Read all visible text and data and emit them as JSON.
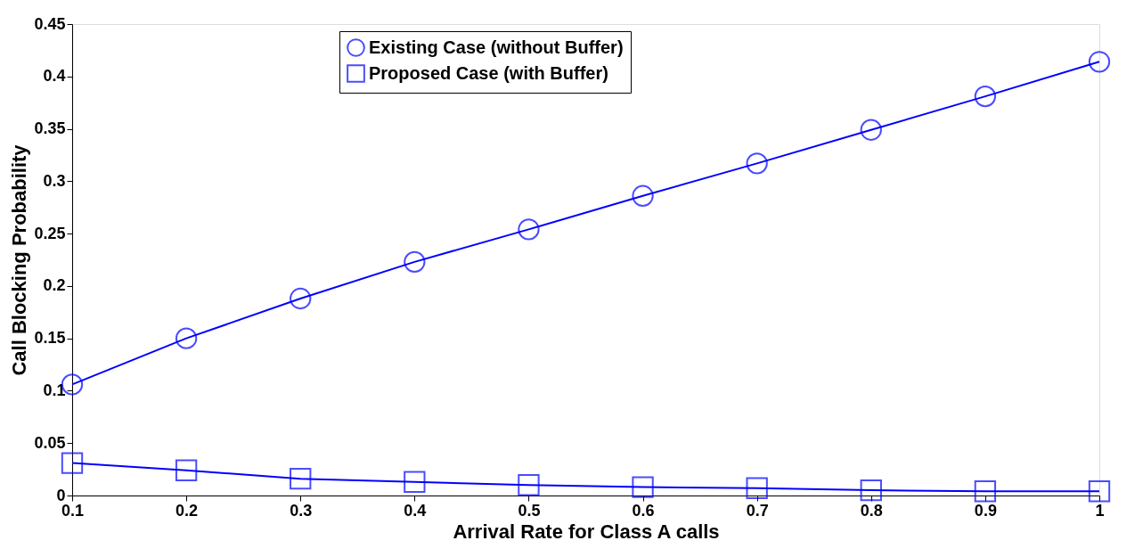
{
  "chart_data": {
    "type": "line",
    "xlabel": "Arrival Rate for Class A calls",
    "ylabel": "Call Blocking Probability",
    "x": [
      0.1,
      0.2,
      0.3,
      0.4,
      0.5,
      0.6,
      0.7,
      0.8,
      0.9,
      1
    ],
    "series": [
      {
        "name": "Existing Case (without Buffer)",
        "color": "#0000ff",
        "marker": "circle",
        "values": [
          0.106,
          0.15,
          0.188,
          0.223,
          0.254,
          0.286,
          0.317,
          0.349,
          0.381,
          0.414
        ]
      },
      {
        "name": "Proposed Case (with Buffer)",
        "color": "#0000ff",
        "marker": "square",
        "values": [
          0.031,
          0.024,
          0.016,
          0.013,
          0.01,
          0.008,
          0.007,
          0.005,
          0.004,
          0.004
        ]
      }
    ],
    "xlim": [
      0.1,
      1
    ],
    "ylim": [
      0,
      0.45
    ],
    "xticks": [
      0.1,
      0.2,
      0.3,
      0.4,
      0.5,
      0.6,
      0.7,
      0.8,
      0.9,
      1
    ],
    "yticks": [
      0,
      0.05,
      0.1,
      0.15,
      0.2,
      0.25,
      0.3,
      0.35,
      0.4,
      0.45
    ],
    "grid": false,
    "legend": "top",
    "line_style": "solid"
  }
}
